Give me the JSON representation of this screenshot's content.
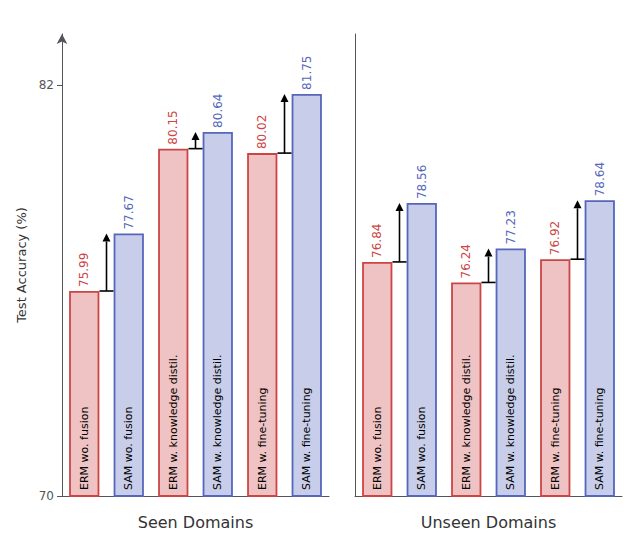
{
  "chart_data": [
    {
      "type": "bar",
      "xlabel": "Seen Domains",
      "ylabel": "Test Accuracy (%)",
      "categories": [
        "ERM wo. fusion",
        "SAM wo. fusion",
        "ERM w. knowledge distil.",
        "SAM w. knowledge distil.",
        "ERM w. fine-tuning",
        "SAM w. fine-tuning"
      ],
      "values": [
        75.99,
        77.67,
        80.15,
        80.64,
        80.02,
        81.75
      ],
      "colors": [
        "#cc4444",
        "#5566bb",
        "#cc4444",
        "#5566bb",
        "#cc4444",
        "#5566bb"
      ],
      "ylim": [
        70,
        83.5
      ],
      "yticks": [
        70,
        82
      ],
      "grid": false,
      "data_labels": true
    },
    {
      "type": "bar",
      "xlabel": "Unseen Domains",
      "categories": [
        "ERM wo. fusion",
        "SAM wo. fusion",
        "ERM w. knowledge distil.",
        "SAM w. knowledge distil.",
        "ERM w. fine-tuning",
        "SAM w. fine-tuning"
      ],
      "values": [
        76.84,
        78.56,
        76.24,
        77.23,
        76.92,
        78.64
      ],
      "colors": [
        "#cc4444",
        "#5566bb",
        "#cc4444",
        "#5566bb",
        "#cc4444",
        "#5566bb"
      ],
      "ylim": [
        70,
        83.5
      ],
      "yticks": [
        70,
        82
      ],
      "grid": false,
      "data_labels": true,
      "tick_labels": "x"
    }
  ]
}
